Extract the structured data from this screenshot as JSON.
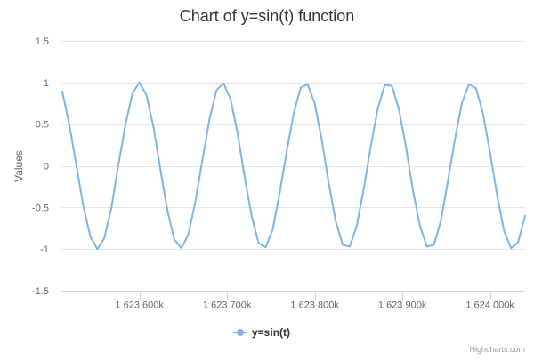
{
  "chart_data": {
    "type": "line",
    "title": "Chart of y=sin(t) function",
    "xlabel": "",
    "ylabel": "Values",
    "xlim": [
      1623510000,
      1624040000
    ],
    "ylim": [
      -1.5,
      1.5
    ],
    "x_ticks": [
      {
        "value": 1623600000,
        "label": "1 623 600k"
      },
      {
        "value": 1623700000,
        "label": "1 623 700k"
      },
      {
        "value": 1623800000,
        "label": "1 623 800k"
      },
      {
        "value": 1623900000,
        "label": "1 623 900k"
      },
      {
        "value": 1624000000,
        "label": "1 624 000k"
      }
    ],
    "y_ticks": [
      {
        "value": 1.5,
        "label": "1.5"
      },
      {
        "value": 1,
        "label": "1"
      },
      {
        "value": 0.5,
        "label": "0.5"
      },
      {
        "value": 0,
        "label": "0"
      },
      {
        "value": -0.5,
        "label": "-0.5"
      },
      {
        "value": -1,
        "label": "-1"
      },
      {
        "value": -1.5,
        "label": "-1.5"
      }
    ],
    "grid": true,
    "legend_position": "bottom-center",
    "series": [
      {
        "name": "y=sin(t)",
        "color": "#7cb5ec",
        "x": [
          1623512000,
          1623520000,
          1623528000,
          1623536000,
          1623544000,
          1623552000,
          1623560000,
          1623568000,
          1623576000,
          1623584000,
          1623592000,
          1623600000,
          1623608000,
          1623616000,
          1623624000,
          1623632000,
          1623640000,
          1623648000,
          1623656000,
          1623664000,
          1623672000,
          1623680000,
          1623688000,
          1623696000,
          1623704000,
          1623712000,
          1623720000,
          1623728000,
          1623736000,
          1623744000,
          1623752000,
          1623760000,
          1623768000,
          1623776000,
          1623784000,
          1623792000,
          1623800000,
          1623808000,
          1623816000,
          1623824000,
          1623832000,
          1623840000,
          1623848000,
          1623856000,
          1623864000,
          1623872000,
          1623880000,
          1623888000,
          1623896000,
          1623904000,
          1623912000,
          1623920000,
          1623928000,
          1623936000,
          1623944000,
          1623952000,
          1623960000,
          1623968000,
          1623976000,
          1623984000,
          1623992000,
          1624000000,
          1624008000,
          1624016000,
          1624024000,
          1624032000,
          1624040000
        ],
        "values": [
          0.89,
          0.5,
          0.01,
          -0.48,
          -0.85,
          -1.0,
          -0.87,
          -0.51,
          0.01,
          0.49,
          0.87,
          1.0,
          0.85,
          0.47,
          -0.05,
          -0.54,
          -0.89,
          -0.99,
          -0.82,
          -0.42,
          0.08,
          0.56,
          0.91,
          0.99,
          0.8,
          0.39,
          -0.13,
          -0.6,
          -0.93,
          -0.98,
          -0.77,
          -0.33,
          0.17,
          0.63,
          0.94,
          0.98,
          0.75,
          0.31,
          -0.21,
          -0.67,
          -0.95,
          -0.97,
          -0.72,
          -0.27,
          0.24,
          0.69,
          0.97,
          0.96,
          0.68,
          0.23,
          -0.29,
          -0.72,
          -0.97,
          -0.95,
          -0.66,
          -0.18,
          0.32,
          0.76,
          0.98,
          0.93,
          0.63,
          0.16,
          -0.35,
          -0.78,
          -0.99,
          -0.92,
          -0.6
        ]
      }
    ]
  },
  "credits": "Highcharts.com"
}
